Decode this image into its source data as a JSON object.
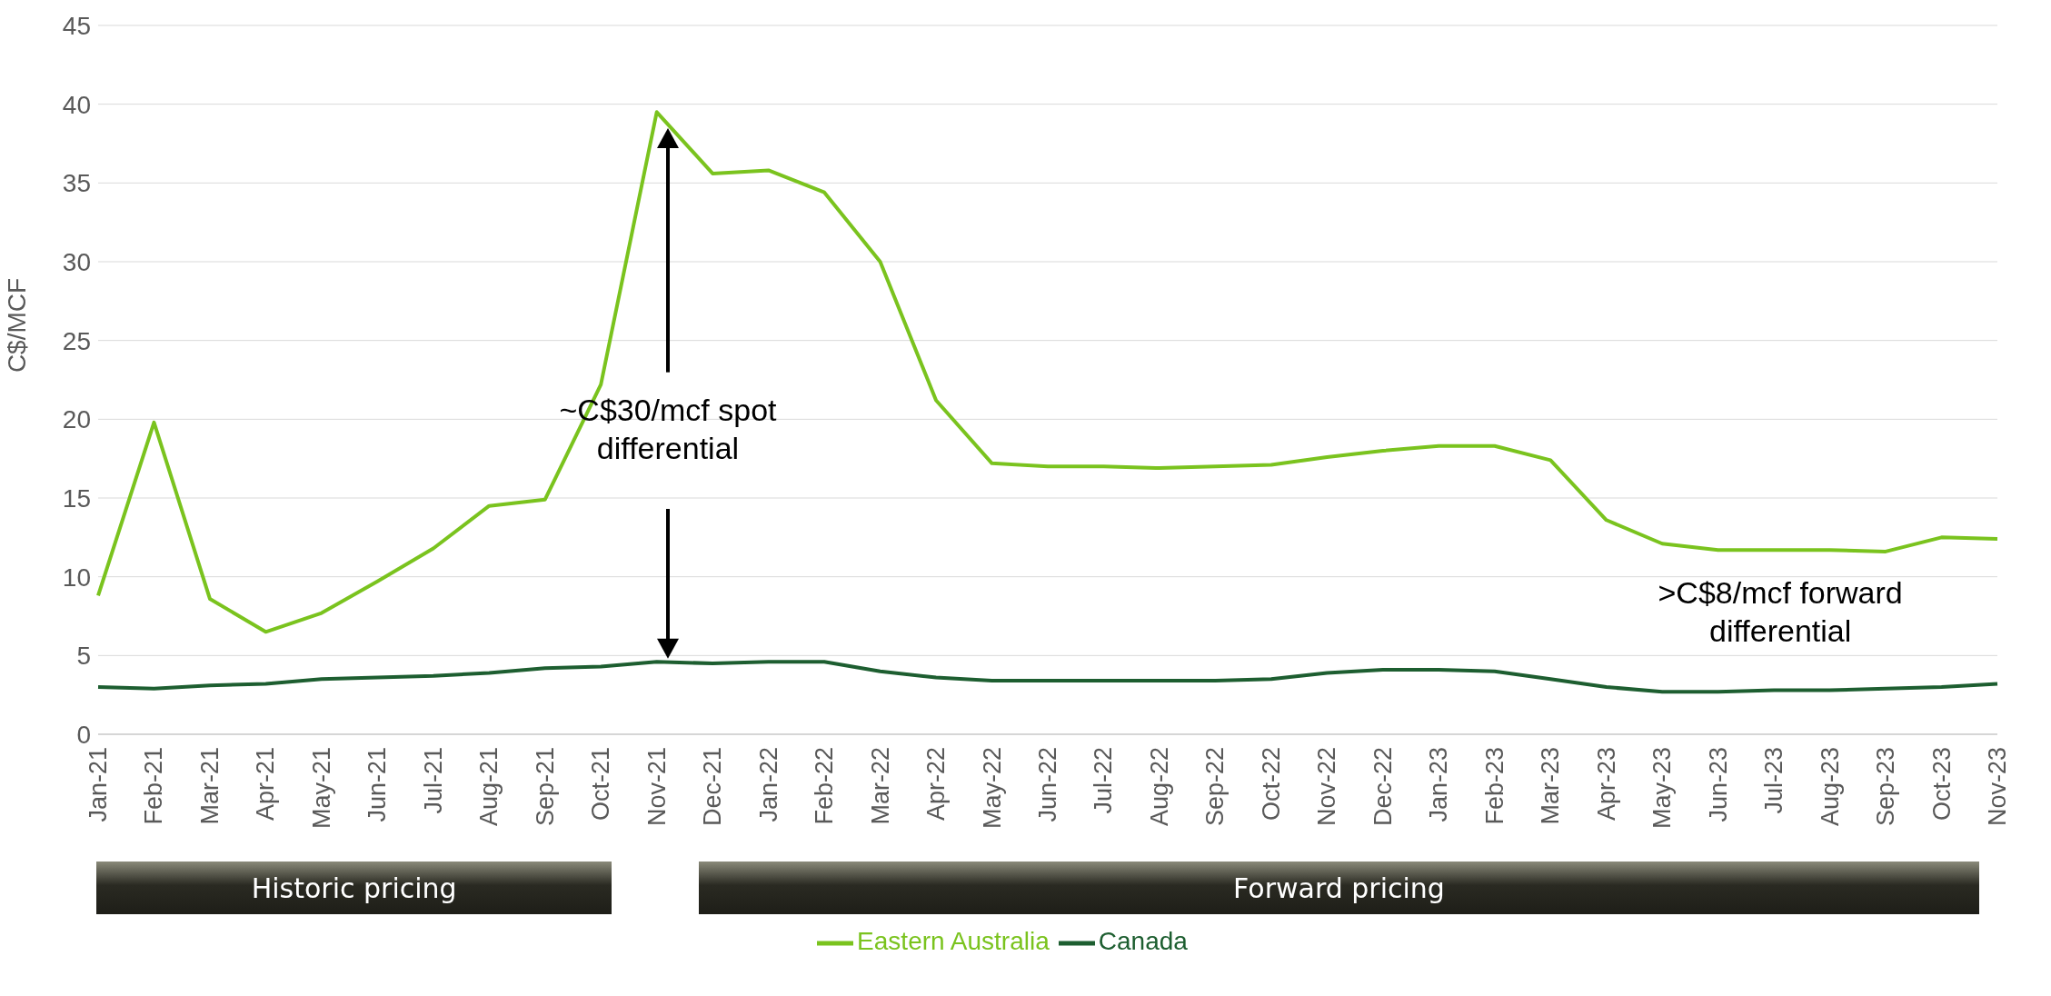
{
  "chart_data": {
    "type": "line",
    "ylabel": "C$/MCF",
    "categories": [
      "Jan-21",
      "Feb-21",
      "Mar-21",
      "Apr-21",
      "May-21",
      "Jun-21",
      "Jul-21",
      "Aug-21",
      "Sep-21",
      "Oct-21",
      "Nov-21",
      "Dec-21",
      "Jan-22",
      "Feb-22",
      "Mar-22",
      "Apr-22",
      "May-22",
      "Jun-22",
      "Jul-22",
      "Aug-22",
      "Sep-22",
      "Oct-22",
      "Nov-22",
      "Dec-22",
      "Jan-23",
      "Feb-23",
      "Mar-23",
      "Apr-23",
      "May-23",
      "Jun-23",
      "Jul-23",
      "Aug-23",
      "Sep-23",
      "Oct-23",
      "Nov-23"
    ],
    "series": [
      {
        "name": "Eastern Australia",
        "color": "#7ac31e",
        "values": [
          8.8,
          19.8,
          8.6,
          6.5,
          7.7,
          9.7,
          11.8,
          14.5,
          14.9,
          22.2,
          39.5,
          35.6,
          35.8,
          34.4,
          30.0,
          21.2,
          17.2,
          17.0,
          17.0,
          16.9,
          17.0,
          17.1,
          17.6,
          18.0,
          18.3,
          18.3,
          17.4,
          13.6,
          12.1,
          11.7,
          11.7,
          11.7,
          11.6,
          12.5,
          12.4
        ]
      },
      {
        "name": "Canada",
        "color": "#1d5e30",
        "values": [
          3.0,
          2.9,
          3.1,
          3.2,
          3.5,
          3.6,
          3.7,
          3.9,
          4.2,
          4.3,
          4.6,
          4.5,
          4.6,
          4.6,
          4.0,
          3.6,
          3.4,
          3.4,
          3.4,
          3.4,
          3.4,
          3.5,
          3.9,
          4.1,
          4.1,
          4.0,
          3.5,
          3.0,
          2.7,
          2.7,
          2.8,
          2.8,
          2.9,
          3.0,
          3.2
        ]
      }
    ],
    "ylim": [
      0,
      45
    ],
    "yticks": [
      0,
      5,
      10,
      15,
      20,
      25,
      30,
      35,
      40,
      45
    ],
    "grid": "y",
    "legend": "bottom",
    "marker": "none",
    "line_style": "solid",
    "annotations": [
      "~C$30/mcf spot differential",
      ">C$8/mcf forward differential",
      "Historic pricing",
      "Forward pricing"
    ]
  }
}
